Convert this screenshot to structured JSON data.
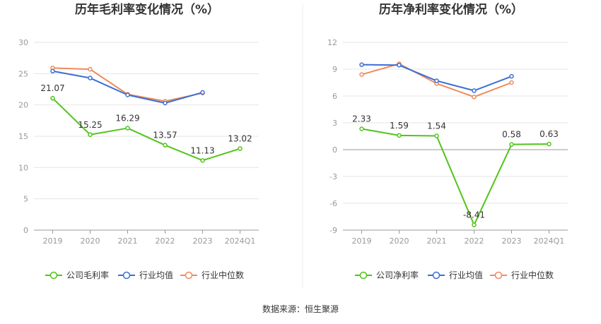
{
  "source": "数据来源：恒生聚源",
  "colors": {
    "company": "#52c41a",
    "avg": "#3b6fd6",
    "median": "#f08a5d"
  },
  "chart_data": [
    {
      "type": "line",
      "title": "历年毛利率变化情况（%）",
      "categories": [
        "2019",
        "2020",
        "2021",
        "2022",
        "2023",
        "2024Q1"
      ],
      "yticks": [
        "0",
        "5",
        "10",
        "15",
        "20",
        "25",
        "30"
      ],
      "ylim": [
        0,
        30
      ],
      "grid": true,
      "legend": "bottom",
      "series": [
        {
          "name": "公司毛利率",
          "values": [
            21.07,
            15.25,
            16.29,
            13.57,
            11.13,
            13.02
          ],
          "labels": [
            "21.07",
            "15.25",
            "16.29",
            "13.57",
            "11.13",
            "13.02"
          ]
        },
        {
          "name": "行业均值",
          "values": [
            25.4,
            24.3,
            21.6,
            20.3,
            22.0,
            null
          ]
        },
        {
          "name": "行业中位数",
          "values": [
            25.9,
            25.7,
            21.7,
            20.6,
            21.9,
            null
          ]
        }
      ]
    },
    {
      "type": "line",
      "title": "历年净利率变化情况（%）",
      "categories": [
        "2019",
        "2020",
        "2021",
        "2022",
        "2023",
        "2024Q1"
      ],
      "yticks": [
        "-9",
        "-6",
        "-3",
        "0",
        "3",
        "6",
        "9",
        "12"
      ],
      "ylim": [
        -9,
        12
      ],
      "grid": true,
      "legend": "bottom",
      "series": [
        {
          "name": "公司净利率",
          "values": [
            2.33,
            1.59,
            1.54,
            -8.41,
            0.58,
            0.63
          ],
          "labels": [
            "2.33",
            "1.59",
            "1.54",
            "-8.41",
            "0.58",
            "0.63"
          ]
        },
        {
          "name": "行业均值",
          "values": [
            9.5,
            9.45,
            7.7,
            6.6,
            8.2,
            null
          ]
        },
        {
          "name": "行业中位数",
          "values": [
            8.4,
            9.6,
            7.4,
            5.9,
            7.5,
            null
          ]
        }
      ]
    }
  ]
}
